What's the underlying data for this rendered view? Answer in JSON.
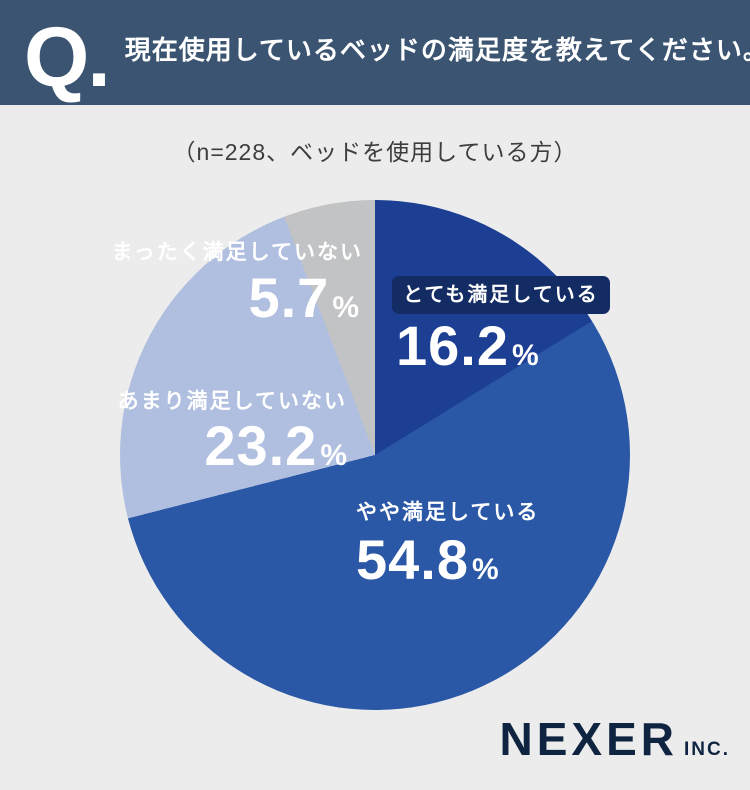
{
  "header": {
    "q_mark": "Q.",
    "question": "現在使用しているベッドの満足度を教えてください。"
  },
  "subtitle": "（n=228、ベッドを使用している方）",
  "chart_data": {
    "type": "pie",
    "title": "現在使用しているベッドの満足度",
    "sample_note": "n=228、ベッドを使用している方",
    "start_angle_deg": 0,
    "direction": "clockwise",
    "legend_position": "on-slice",
    "segments": [
      {
        "label": "とても満足している",
        "number": "16.2",
        "value": 16.2,
        "unit": "%",
        "color": "#1c3f93",
        "label_style": "dark-pill"
      },
      {
        "label": "やや満足している",
        "number": "54.8",
        "value": 54.8,
        "unit": "%",
        "color": "#2a57a6",
        "label_style": "plain"
      },
      {
        "label": "あまり満足していない",
        "number": "23.2",
        "value": 23.2,
        "unit": "%",
        "color": "#b0bfe0",
        "label_style": "plain"
      },
      {
        "label": "まったく満足していない",
        "number": "5.7",
        "value": 5.7,
        "unit": "%",
        "color": "#c2c3c5",
        "label_style": "plain"
      }
    ]
  },
  "footer": {
    "brand": "NEXER",
    "brand_suffix": "INC."
  },
  "colors": {
    "page_background": "#ececec",
    "header_background": "#3b5472",
    "header_text": "#ffffff",
    "subtitle_text": "#3d3d3d",
    "label_pill_background": "#132c63",
    "label_text": "#ffffff",
    "brand_text": "#0e2440"
  }
}
